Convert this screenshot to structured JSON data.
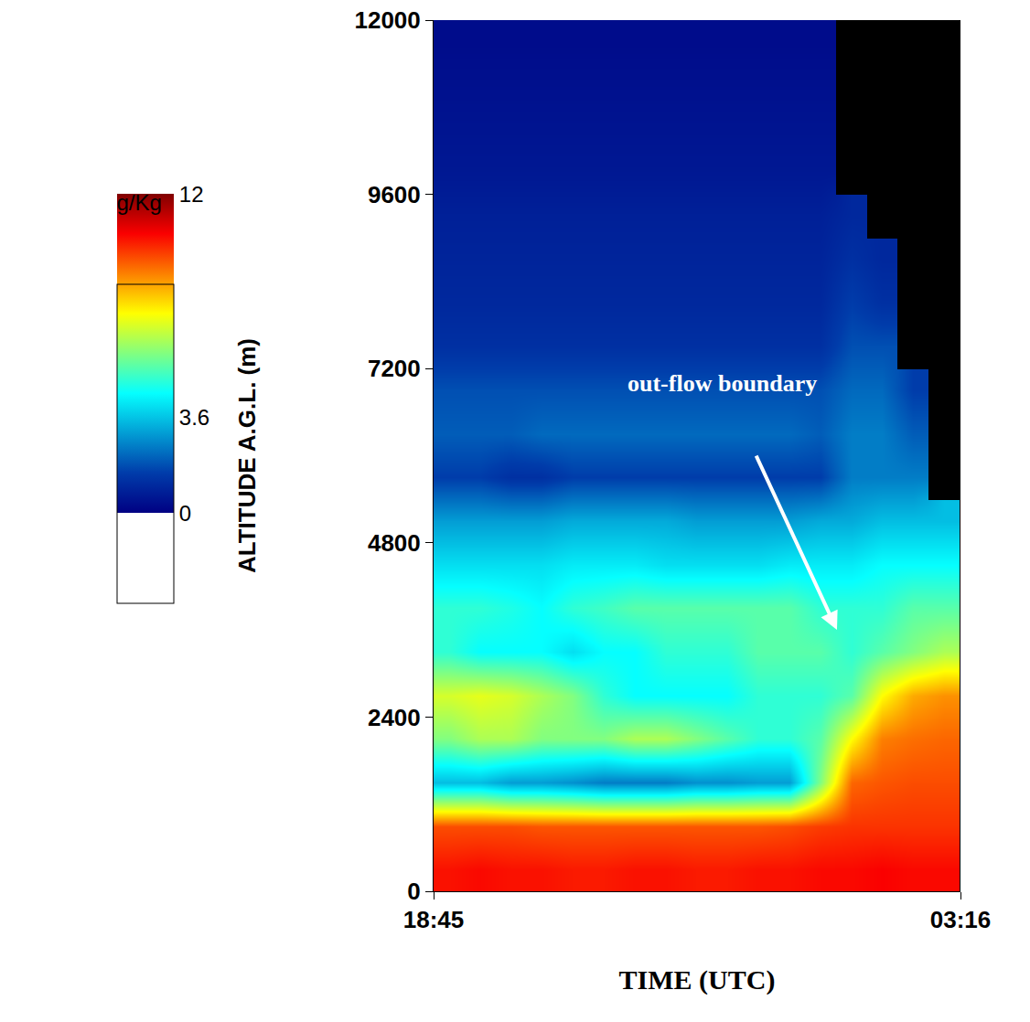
{
  "chart_data": {
    "type": "heatmap",
    "x_label": "TIME (UTC)",
    "y_label": "ALTITUDE A.G.L. (m)",
    "x": [
      19.0,
      19.5,
      20.0,
      20.5,
      21.0,
      21.5,
      22.0,
      22.5,
      23.0,
      23.5,
      24.0,
      24.5,
      25.0,
      25.5,
      26.0,
      26.5,
      27.0
    ],
    "y": [
      300,
      900,
      1500,
      2100,
      2700,
      3300,
      3900,
      4500,
      5100,
      5700,
      6300,
      6900,
      7500,
      8100,
      8700,
      9300,
      9900,
      10500,
      11100,
      11700
    ],
    "z": [
      [
        10.3,
        10.4,
        10.3,
        10.3,
        10.2,
        10.2,
        10.3,
        10.3,
        10.2,
        10.2,
        10.3,
        10.3,
        10.4,
        10.4,
        10.5,
        10.4,
        10.4
      ],
      [
        9.6,
        9.6,
        9.6,
        9.5,
        9.5,
        9.5,
        9.5,
        9.5,
        9.5,
        9.5,
        9.5,
        9.6,
        9.8,
        9.9,
        9.9,
        9.9,
        9.9
      ],
      [
        3.5,
        3.5,
        3,
        3,
        2.8,
        2.5,
        2.5,
        2.5,
        2.8,
        2.8,
        3,
        3,
        6,
        9.3,
        9.5,
        9.6,
        9.6
      ],
      [
        6,
        6.5,
        6.5,
        6,
        6,
        6,
        6.5,
        6.5,
        6,
        5.5,
        5,
        5,
        5.5,
        7.5,
        9,
        9.2,
        9.3
      ],
      [
        7,
        7.2,
        7,
        6.5,
        6,
        5,
        4.5,
        4.5,
        4.5,
        4.5,
        5,
        5,
        5,
        5.5,
        7.5,
        8.5,
        8.8
      ],
      [
        5,
        4.5,
        4.5,
        4.5,
        4,
        4.5,
        4.5,
        5,
        5,
        5,
        5.5,
        5.5,
        5.5,
        5,
        5.5,
        6,
        6.5
      ],
      [
        5,
        5,
        4.8,
        4.5,
        5,
        5.2,
        5.5,
        5.5,
        5.5,
        5.5,
        5.5,
        5.5,
        5,
        5,
        5,
        5.5,
        5.5
      ],
      [
        4,
        4,
        4,
        4,
        4.2,
        4.2,
        4.2,
        4,
        4,
        4,
        4,
        4.2,
        4.2,
        4.2,
        4.5,
        4.5,
        4.5
      ],
      [
        3,
        3,
        3,
        3,
        3.2,
        3.2,
        3.2,
        3.2,
        3,
        3,
        3,
        3,
        3.2,
        3.2,
        3.5,
        3.5,
        3.5
      ],
      [
        1.5,
        1.5,
        1.2,
        1.2,
        1.5,
        1.5,
        1.5,
        1.5,
        1.5,
        1.5,
        1.5,
        1.5,
        1.5,
        2.5,
        2.5,
        2.5,
        null
      ],
      [
        2,
        2,
        2,
        2.2,
        2.2,
        2.2,
        2.2,
        2.2,
        2.2,
        2.2,
        2.2,
        2.2,
        2,
        2.5,
        2.5,
        2,
        null
      ],
      [
        1.8,
        1.8,
        1.8,
        1.8,
        1.8,
        1.8,
        1.8,
        1.8,
        1.8,
        1.8,
        1.8,
        1.8,
        1.8,
        2.2,
        2.2,
        1.5,
        null
      ],
      [
        1.2,
        1.2,
        1.2,
        1.2,
        1.2,
        1.2,
        1.2,
        1.2,
        1.2,
        1.2,
        1.2,
        1.2,
        1.2,
        1.8,
        1.8,
        null,
        null
      ],
      [
        1,
        1,
        1,
        1,
        1,
        1,
        1,
        1,
        1,
        1,
        1,
        1,
        1,
        1.5,
        1.2,
        null,
        null
      ],
      [
        0.9,
        0.9,
        0.9,
        0.9,
        0.9,
        0.9,
        0.9,
        0.9,
        0.9,
        0.9,
        0.9,
        0.9,
        0.9,
        1.2,
        1,
        null,
        null
      ],
      [
        0.8,
        0.8,
        0.8,
        0.8,
        0.8,
        0.8,
        0.8,
        0.8,
        0.8,
        0.8,
        0.8,
        0.8,
        0.8,
        1,
        null,
        null,
        null
      ],
      [
        0.6,
        0.6,
        0.6,
        0.6,
        0.6,
        0.6,
        0.6,
        0.6,
        0.6,
        0.6,
        0.6,
        0.6,
        0.6,
        null,
        null,
        null,
        null
      ],
      [
        0.5,
        0.5,
        0.5,
        0.5,
        0.5,
        0.5,
        0.5,
        0.5,
        0.5,
        0.5,
        0.5,
        0.5,
        0.5,
        null,
        null,
        null,
        null
      ],
      [
        0.4,
        0.4,
        0.4,
        0.4,
        0.4,
        0.4,
        0.4,
        0.4,
        0.4,
        0.4,
        0.4,
        0.4,
        0.4,
        null,
        null,
        null,
        null
      ],
      [
        0.3,
        0.3,
        0.3,
        0.3,
        0.3,
        0.3,
        0.3,
        0.3,
        0.3,
        0.3,
        0.3,
        0.3,
        0.3,
        null,
        null,
        null,
        null
      ]
    ],
    "xlim": [
      18.75,
      27.2667
    ],
    "xticks": [
      {
        "value": 18.75,
        "label": "18:45"
      },
      {
        "value": 27.2667,
        "label": "03:16"
      }
    ],
    "ylim": [
      0,
      12000
    ],
    "yticks": [
      0,
      2400,
      4800,
      7200,
      9600,
      12000
    ],
    "colorbar": {
      "title": "g/Kg",
      "range": [
        0,
        12
      ],
      "ticks": [
        0,
        3.6,
        12
      ]
    },
    "annotations": [
      {
        "text": "out-flow boundary",
        "x": 25.27,
        "y": 3600,
        "text_x": 23.42,
        "text_y": 7000
      }
    ]
  }
}
